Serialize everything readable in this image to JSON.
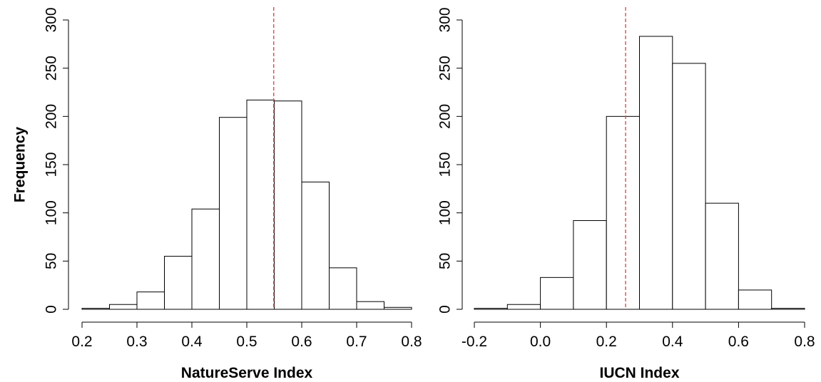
{
  "chart_data": [
    {
      "type": "bar",
      "subtype": "histogram",
      "xlabel": "NatureServe Index",
      "ylabel": "Frequency",
      "bin_edges": [
        0.2,
        0.25,
        0.3,
        0.35,
        0.4,
        0.45,
        0.5,
        0.55,
        0.6,
        0.65,
        0.7,
        0.75,
        0.8
      ],
      "values": [
        1,
        5,
        18,
        55,
        104,
        199,
        217,
        216,
        132,
        43,
        8,
        2
      ],
      "xlim": [
        0.2,
        0.8
      ],
      "ylim": [
        0,
        300
      ],
      "xticks": [
        0.2,
        0.3,
        0.4,
        0.5,
        0.6,
        0.7,
        0.8
      ],
      "xtick_labels": [
        "0.2",
        "0.3",
        "0.4",
        "0.5",
        "0.6",
        "0.7",
        "0.8"
      ],
      "yticks": [
        0,
        50,
        100,
        150,
        200,
        250,
        300
      ],
      "ytick_labels": [
        "0",
        "50",
        "100",
        "150",
        "200",
        "250",
        "300"
      ],
      "reference_line": {
        "x": 0.549,
        "color": "#e34a4a",
        "style": "dashed"
      },
      "grid": false,
      "bar_fill": "#ffffff",
      "bar_stroke": "#000000"
    },
    {
      "type": "bar",
      "subtype": "histogram",
      "xlabel": "IUCN Index",
      "ylabel": "",
      "bin_edges": [
        -0.2,
        -0.1,
        0.0,
        0.1,
        0.2,
        0.3,
        0.4,
        0.5,
        0.6,
        0.7,
        0.8
      ],
      "values": [
        1,
        5,
        33,
        92,
        200,
        283,
        255,
        110,
        20,
        1
      ],
      "xlim": [
        -0.2,
        0.8
      ],
      "ylim": [
        0,
        300
      ],
      "xticks": [
        -0.2,
        0.0,
        0.2,
        0.4,
        0.6,
        0.8
      ],
      "xtick_labels": [
        "-0.2",
        "0.0",
        "0.2",
        "0.4",
        "0.6",
        "0.8"
      ],
      "yticks": [
        0,
        50,
        100,
        150,
        200,
        250,
        300
      ],
      "ytick_labels": [
        "0",
        "50",
        "100",
        "150",
        "200",
        "250",
        "300"
      ],
      "reference_line": {
        "x": 0.258,
        "color": "#e34a4a",
        "style": "dashed"
      },
      "grid": false,
      "bar_fill": "#ffffff",
      "bar_stroke": "#000000"
    }
  ]
}
